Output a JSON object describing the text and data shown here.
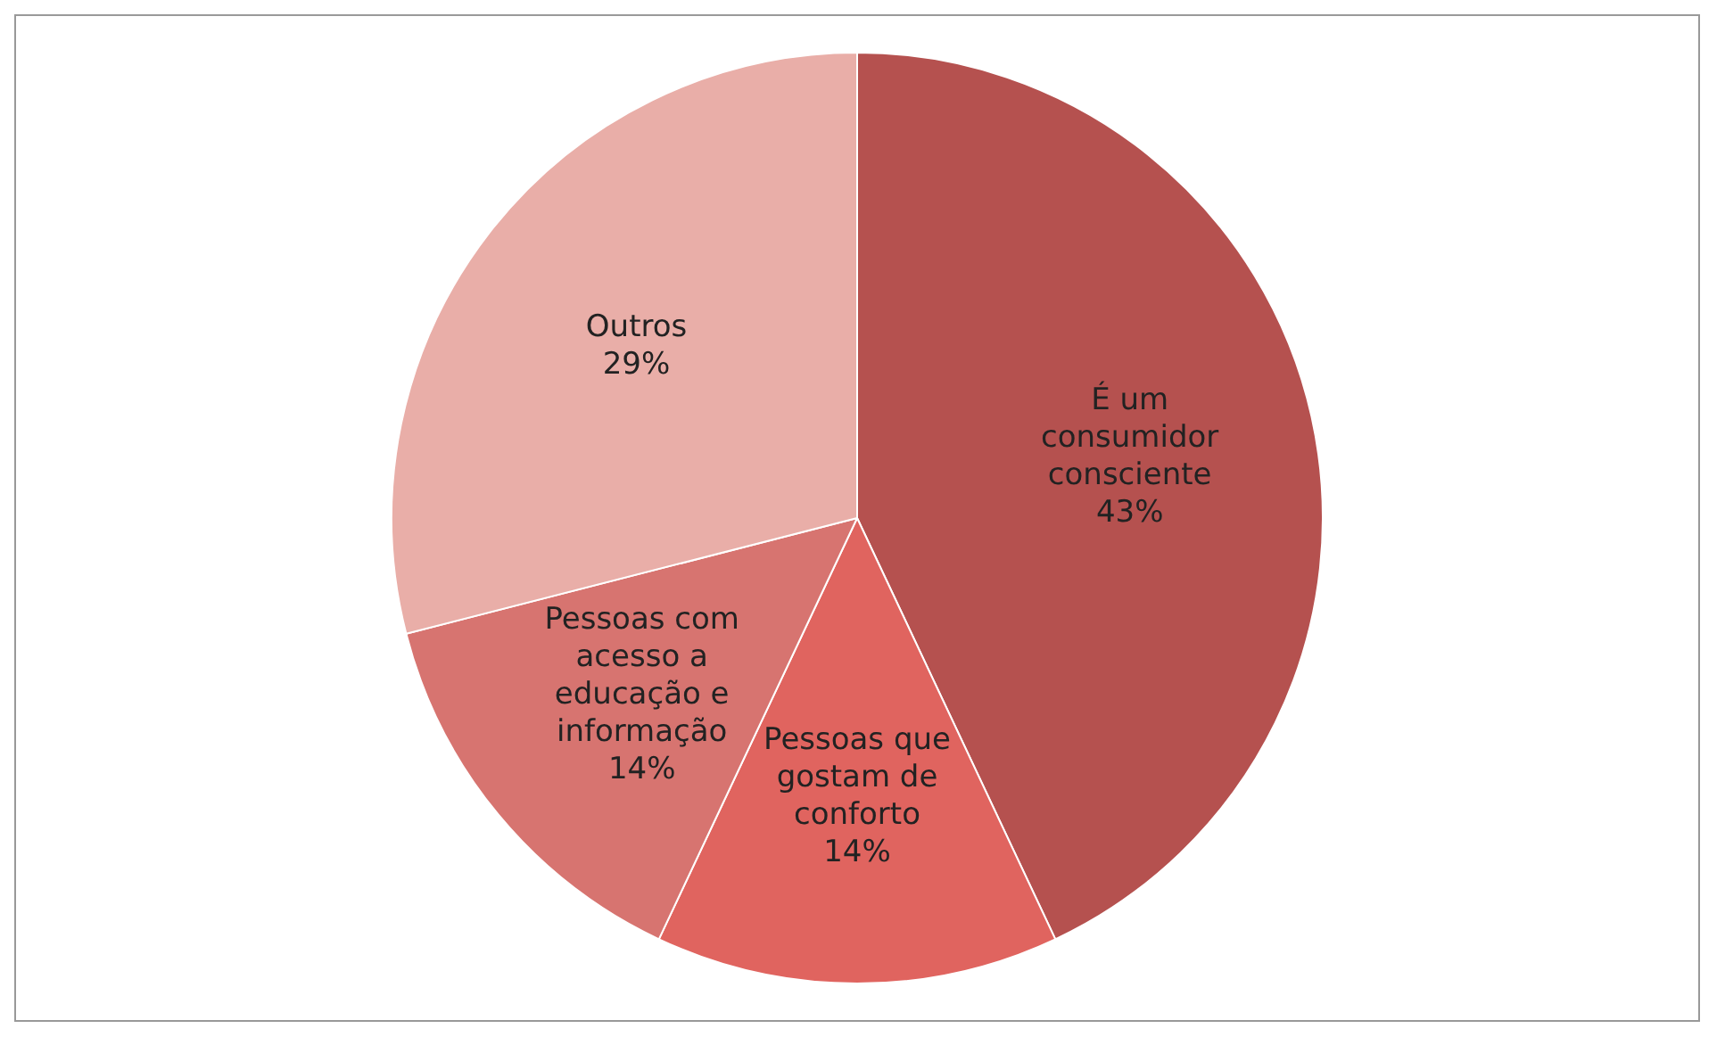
{
  "chart_data": {
    "type": "pie",
    "categories": [
      "É um consumidor consciente",
      "Pessoas que gostam de conforto",
      "Pessoas com acesso a educação e informação",
      "Outros"
    ],
    "values": [
      43,
      14,
      14,
      29
    ],
    "value_labels": [
      "43%",
      "14%",
      "14%",
      "29%"
    ],
    "colors": [
      "#b5514f",
      "#e0645f",
      "#d77470",
      "#e9aea8"
    ],
    "legend": false
  }
}
